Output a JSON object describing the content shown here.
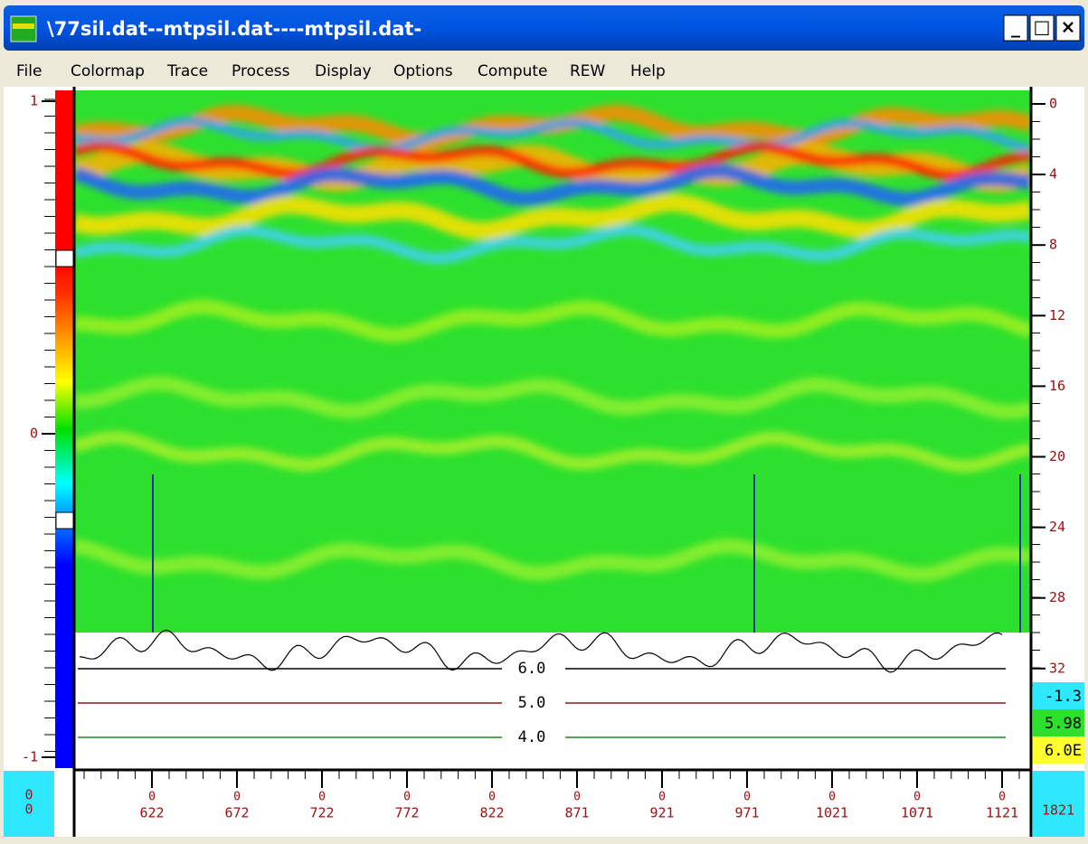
{
  "window": {
    "title": "\\77sil.dat--mtpsil.dat----mtpsil.dat-",
    "buttons": [
      "_",
      "□",
      "×"
    ]
  },
  "menu": [
    "File",
    "Colormap",
    "Trace",
    "Process",
    "Display",
    "Options",
    "Compute",
    "REW",
    "Help"
  ],
  "color_scale": {
    "labels": [
      "1",
      "0",
      "-1"
    ]
  },
  "depth_axis": {
    "labels": [
      "0",
      "4",
      "8",
      "12",
      "16",
      "20",
      "24",
      "28",
      "32"
    ]
  },
  "trace_axis": {
    "left_box": [
      "0",
      "0"
    ],
    "labels": [
      "622",
      "672",
      "722",
      "772",
      "822",
      "871",
      "921",
      "971",
      "1021",
      "1071",
      "1121"
    ],
    "tick_caps": "0",
    "right_box": "1821"
  },
  "trace_lines": [
    {
      "label": "6.0",
      "color": "#000000"
    },
    {
      "label": "5.0",
      "color": "#8b1a1a"
    },
    {
      "label": "4.0",
      "color": "#1a8b1a"
    }
  ],
  "status": [
    "-1.3",
    "5.98",
    "6.0E"
  ]
}
